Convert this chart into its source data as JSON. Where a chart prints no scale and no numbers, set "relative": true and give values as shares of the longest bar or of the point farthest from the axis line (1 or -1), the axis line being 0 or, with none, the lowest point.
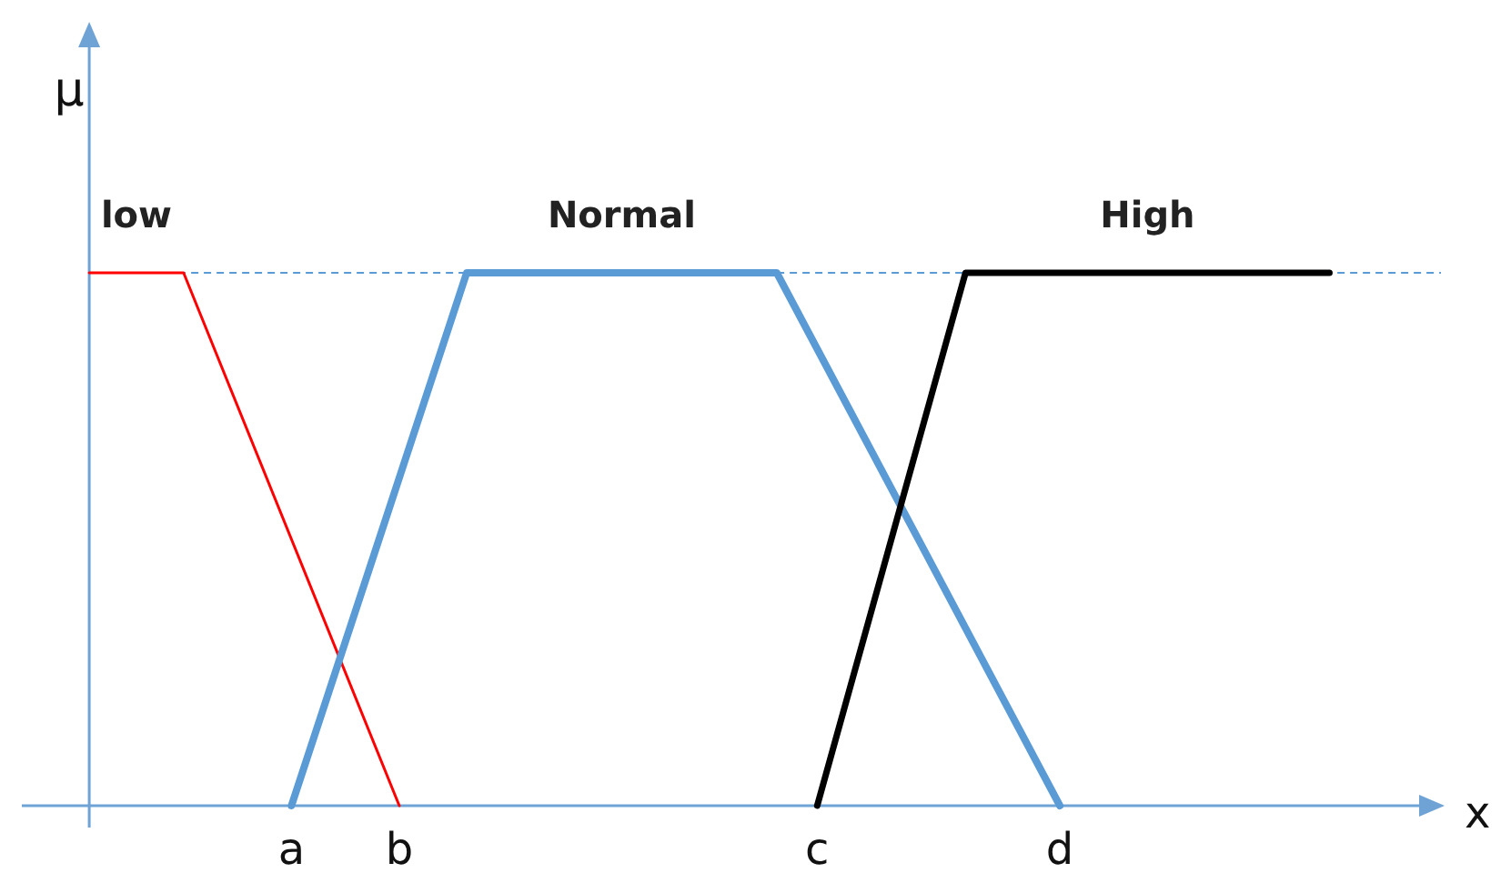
{
  "chart_data": {
    "type": "line",
    "relative": true,
    "xlabel": "x",
    "ylabel": "μ",
    "categories": [
      null,
      null,
      null,
      null,
      null,
      null,
      null,
      null,
      null,
      null,
      null,
      null,
      null,
      null,
      null,
      null,
      null,
      null,
      null,
      null,
      "a",
      null,
      null,
      null,
      null,
      null,
      null,
      null,
      "b",
      null,
      null,
      null,
      null,
      null,
      null,
      null,
      null,
      null,
      null,
      null,
      null,
      null,
      null,
      null,
      null,
      null,
      null,
      null,
      null,
      null,
      null,
      null,
      null,
      null,
      null,
      null,
      null,
      null,
      null,
      "c",
      null,
      null,
      null,
      null,
      null,
      null,
      null,
      null,
      null,
      null,
      null,
      null,
      null,
      null,
      null,
      null,
      null,
      "d",
      null,
      null,
      null,
      null,
      null,
      null,
      null,
      null,
      null,
      null,
      null,
      null,
      null,
      null,
      null,
      null,
      null,
      null,
      null,
      null,
      null,
      null,
      null,
      null,
      null,
      null,
      null,
      null
    ],
    "series": [
      {
        "name": "low",
        "color": "#ff0000",
        "values": [
          null,
          null,
          null,
          null,
          null,
          1,
          null,
          null,
          null,
          null,
          null,
          null,
          1,
          null,
          null,
          null,
          null,
          null,
          null,
          null,
          null,
          null,
          null,
          null,
          null,
          null,
          null,
          null,
          0,
          null,
          null,
          null,
          null,
          null,
          null,
          null,
          null,
          null,
          null,
          null,
          null,
          null,
          null,
          null,
          null,
          null,
          null,
          null,
          null,
          null,
          null,
          null,
          null,
          null,
          null,
          null,
          null,
          null,
          null,
          null,
          null,
          null,
          null,
          null,
          null,
          null,
          null,
          null,
          null,
          null,
          null,
          null,
          null,
          null,
          null,
          null,
          null,
          null,
          null,
          null,
          null,
          null,
          null,
          null,
          null,
          null,
          null,
          null,
          null,
          null,
          null,
          null,
          null,
          null,
          null,
          null,
          null,
          null,
          null,
          null,
          null,
          null,
          null,
          null,
          null,
          null
        ]
      },
      {
        "name": "Normal",
        "color": "#5b9bd5",
        "values": [
          null,
          null,
          null,
          null,
          null,
          null,
          null,
          null,
          null,
          null,
          null,
          null,
          null,
          null,
          null,
          null,
          null,
          null,
          null,
          null,
          0,
          null,
          null,
          null,
          null,
          null,
          null,
          null,
          null,
          null,
          null,
          null,
          null,
          1,
          null,
          null,
          null,
          null,
          null,
          null,
          null,
          null,
          null,
          null,
          null,
          null,
          null,
          null,
          null,
          null,
          null,
          null,
          null,
          null,
          null,
          null,
          1,
          null,
          null,
          null,
          null,
          null,
          null,
          null,
          null,
          null,
          null,
          null,
          null,
          null,
          null,
          null,
          null,
          null,
          null,
          null,
          null,
          0,
          null,
          null,
          null,
          null,
          null,
          null,
          null,
          null,
          null,
          null,
          null,
          null,
          null,
          null,
          null,
          null,
          null,
          null,
          null,
          null,
          null,
          null,
          null,
          null,
          null,
          null,
          null,
          null
        ]
      },
      {
        "name": "High",
        "color": "#000000",
        "values": [
          null,
          null,
          null,
          null,
          null,
          null,
          null,
          null,
          null,
          null,
          null,
          null,
          null,
          null,
          null,
          null,
          null,
          null,
          null,
          null,
          null,
          null,
          null,
          null,
          null,
          null,
          null,
          null,
          null,
          null,
          null,
          null,
          null,
          null,
          null,
          null,
          null,
          null,
          null,
          null,
          null,
          null,
          null,
          null,
          null,
          null,
          null,
          null,
          null,
          null,
          null,
          null,
          null,
          null,
          null,
          null,
          null,
          null,
          null,
          0,
          null,
          null,
          null,
          null,
          null,
          null,
          null,
          null,
          null,
          null,
          1,
          null,
          null,
          null,
          null,
          null,
          null,
          null,
          null,
          null,
          null,
          null,
          null,
          null,
          null,
          null,
          null,
          null,
          null,
          null,
          null,
          null,
          null,
          null,
          null,
          null,
          null,
          1,
          null,
          null,
          null,
          null,
          null,
          null,
          null,
          null
        ]
      }
    ],
    "ref_lines": [
      {
        "axis": "y",
        "value": 1,
        "color": "#5b9bd5",
        "line_style": "dashed"
      }
    ],
    "legend": false,
    "marker": "none",
    "tick_labels": "x"
  }
}
